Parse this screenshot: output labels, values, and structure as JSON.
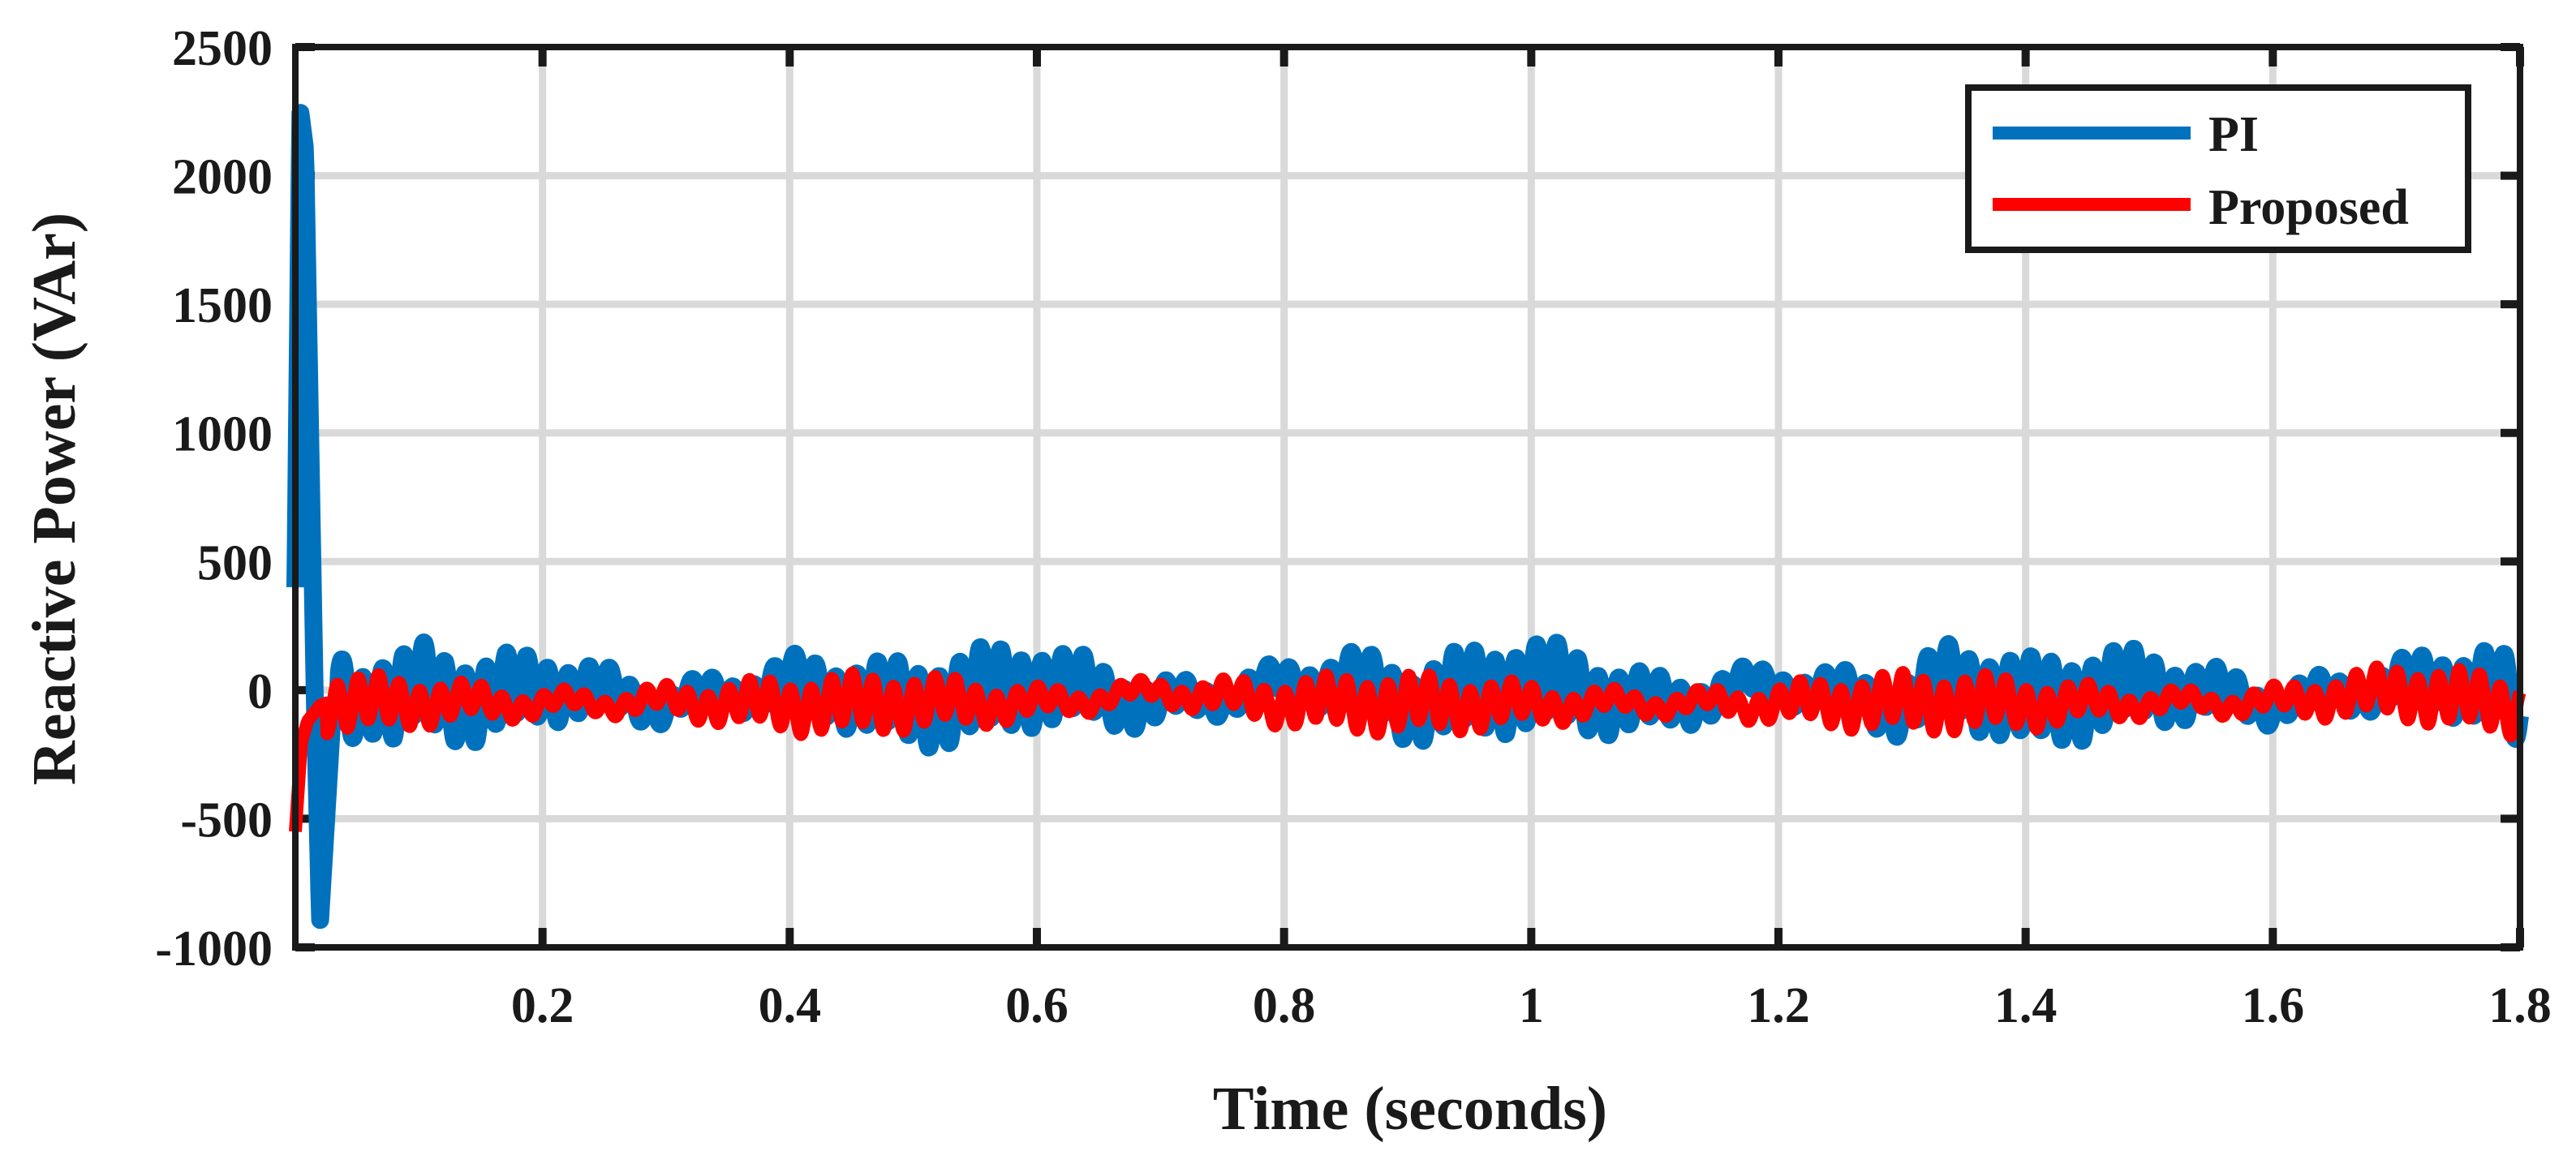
{
  "chart_data": {
    "type": "line",
    "xlabel": "Time (seconds)",
    "ylabel": "Reactive Power (VAr)",
    "xlim": [
      0.0,
      1.8
    ],
    "ylim": [
      -1000,
      2500
    ],
    "xticks": [
      0.2,
      0.4,
      0.6,
      0.8,
      1.0,
      1.2,
      1.4,
      1.6,
      1.8
    ],
    "xtick_labels": [
      "0.2",
      "0.4",
      "0.6",
      "0.8",
      "1",
      "1.2",
      "1.4",
      "1.6",
      "1.8"
    ],
    "yticks": [
      -1000,
      -500,
      0,
      500,
      1000,
      1500,
      2000,
      2500
    ],
    "ytick_labels": [
      "-1000",
      "-500",
      "0",
      "500",
      "1000",
      "1500",
      "2000",
      "2500"
    ],
    "grid": true,
    "legend_position": "top-right",
    "series": [
      {
        "name": "PI",
        "color": "#0072BD",
        "x": [
          0.0,
          0.004,
          0.008,
          0.012,
          0.016,
          0.02,
          0.025,
          0.03,
          0.04,
          0.05,
          0.06,
          0.08,
          0.1,
          0.15,
          0.2,
          0.3,
          0.4,
          0.5,
          0.6,
          0.7,
          0.8,
          0.85,
          0.9,
          1.0,
          1.1,
          1.2,
          1.3,
          1.34,
          1.4,
          1.5,
          1.6,
          1.7,
          1.78,
          1.8
        ],
        "y": [
          400,
          2250,
          2100,
          1000,
          -100,
          -900,
          -500,
          -100,
          100,
          -150,
          80,
          -120,
          100,
          -80,
          120,
          -100,
          150,
          -120,
          130,
          -110,
          120,
          200,
          -100,
          140,
          -120,
          150,
          -130,
          180,
          -100,
          110,
          -90,
          120,
          150,
          -300
        ],
        "oscillation_range": [
          -260,
          200
        ]
      },
      {
        "name": "Proposed",
        "color": "#FF0000",
        "x": [
          0.0,
          0.005,
          0.01,
          0.02,
          0.03,
          0.05,
          0.1,
          0.2,
          0.3,
          0.4,
          0.5,
          0.6,
          0.7,
          0.8,
          0.9,
          1.0,
          1.1,
          1.2,
          1.3,
          1.4,
          1.5,
          1.6,
          1.7,
          1.8
        ],
        "y": [
          -550,
          -200,
          -120,
          -60,
          -40,
          -60,
          -40,
          -60,
          -30,
          -80,
          -40,
          -60,
          80,
          -50,
          -60,
          -70,
          -50,
          -60,
          -40,
          -60,
          -50,
          -40,
          80,
          -100
        ],
        "oscillation_range": [
          -200,
          100
        ]
      }
    ]
  }
}
